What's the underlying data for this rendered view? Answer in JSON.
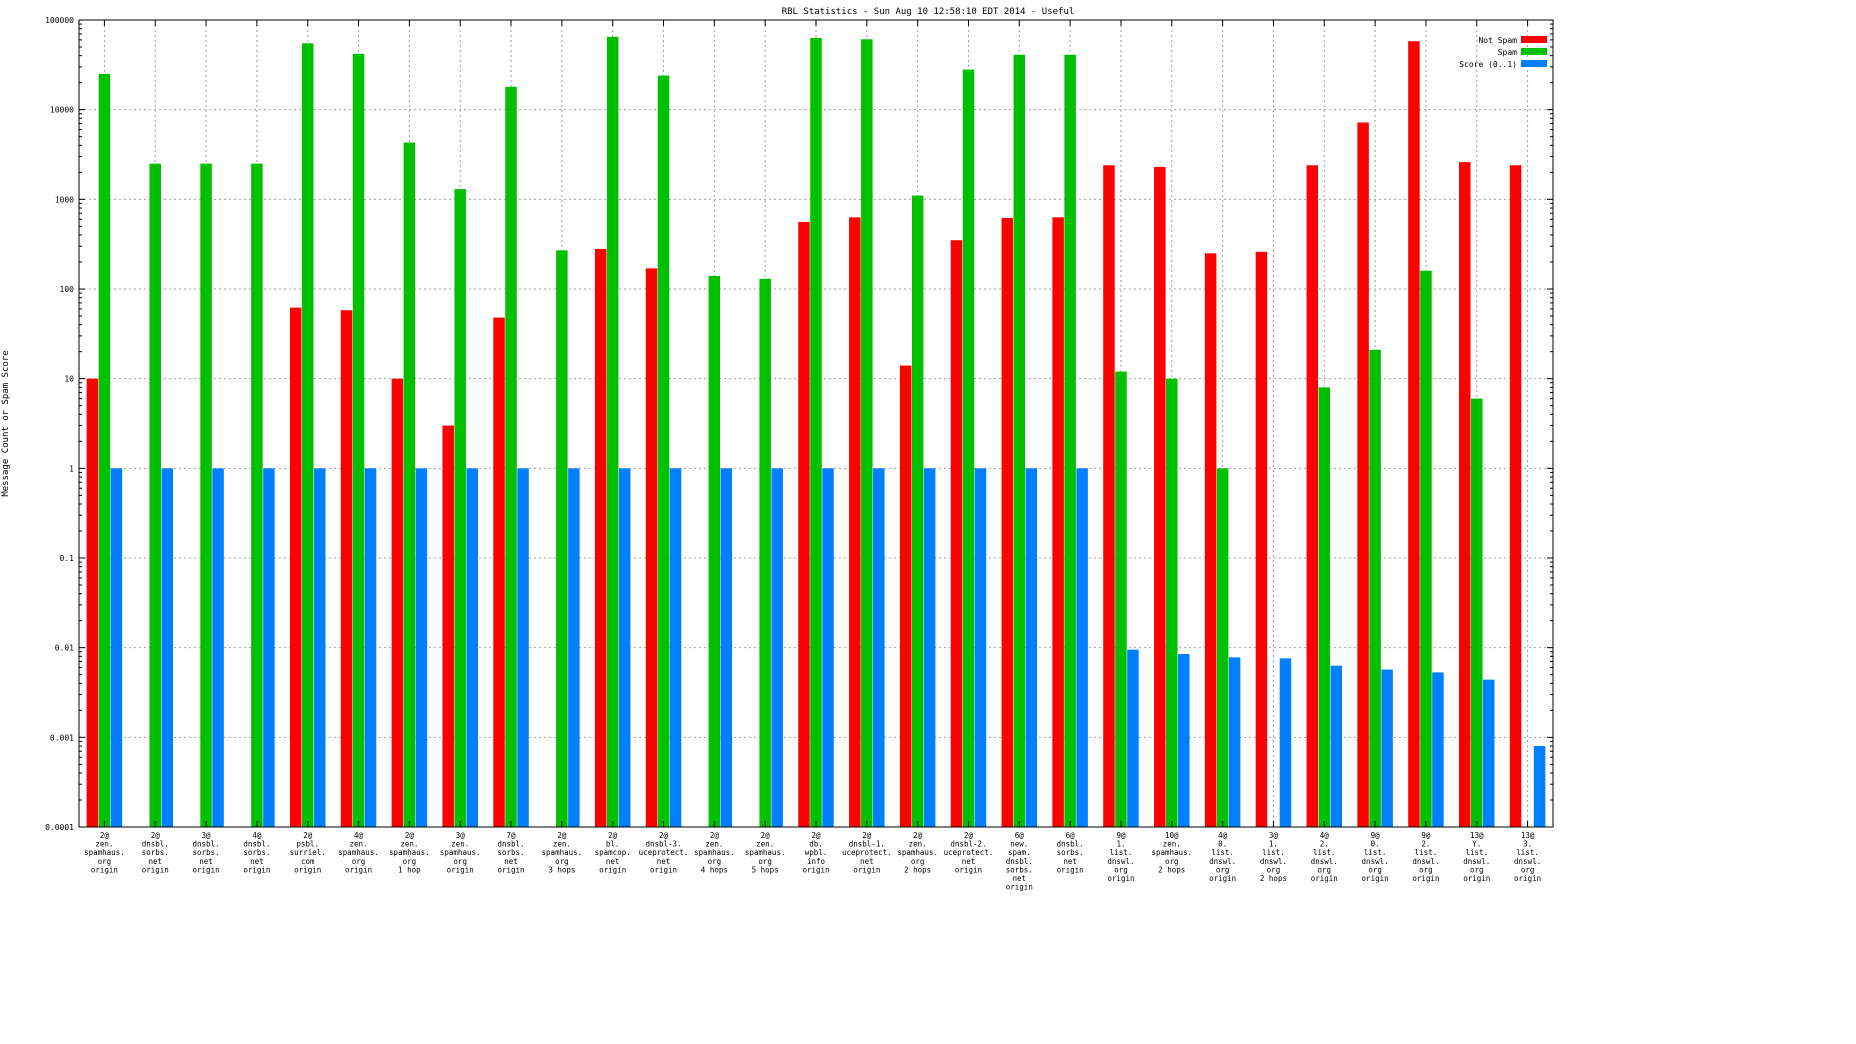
{
  "chart_data": {
    "type": "bar",
    "title": "RBL Statistics - Sun Aug 10 12:58:10 EDT 2014 - Useful",
    "xlabel": "",
    "ylabel": "Message Count or Spam Score",
    "yscale": "log",
    "ylim": [
      0.0001,
      100000
    ],
    "yticks": [
      0.0001,
      0.001,
      0.01,
      0.1,
      1,
      10,
      100,
      1000,
      10000,
      100000
    ],
    "ytick_labels": [
      "0.0001",
      "0.001",
      "0.01",
      "0.1",
      "1",
      "10",
      "100",
      "1000",
      "10000",
      "100000"
    ],
    "grid": true,
    "legend": "top-right",
    "categories": [
      [
        "2@",
        "zen.",
        "spamhaus.",
        "org",
        "origin"
      ],
      [
        "2@",
        "dnsbl.",
        "sorbs.",
        "net",
        "origin"
      ],
      [
        "3@",
        "dnsbl.",
        "sorbs.",
        "net",
        "origin"
      ],
      [
        "4@",
        "dnsbl.",
        "sorbs.",
        "net",
        "origin"
      ],
      [
        "2@",
        "psbl.",
        "surriel.",
        "com",
        "origin"
      ],
      [
        "4@",
        "zen.",
        "spamhaus.",
        "org",
        "origin"
      ],
      [
        "2@",
        "zen.",
        "spamhaus.",
        "org",
        "1 hop"
      ],
      [
        "3@",
        "zen.",
        "spamhaus.",
        "org",
        "origin"
      ],
      [
        "7@",
        "dnsbl.",
        "sorbs.",
        "net",
        "origin"
      ],
      [
        "2@",
        "zen.",
        "spamhaus.",
        "org",
        "3 hops"
      ],
      [
        "2@",
        "bl.",
        "spamcop.",
        "net",
        "origin"
      ],
      [
        "2@",
        "dnsbl-3.",
        "uceprotect.",
        "net",
        "origin"
      ],
      [
        "2@",
        "zen.",
        "spamhaus.",
        "org",
        "4 hops"
      ],
      [
        "2@",
        "zen.",
        "spamhaus.",
        "org",
        "5 hops"
      ],
      [
        "2@",
        "db.",
        "wpbl.",
        "info",
        "origin"
      ],
      [
        "2@",
        "dnsbl-1.",
        "uceprotect.",
        "net",
        "origin"
      ],
      [
        "2@",
        "zen.",
        "spamhaus.",
        "org",
        "2 hops"
      ],
      [
        "2@",
        "dnsbl-2.",
        "uceprotect.",
        "net",
        "origin"
      ],
      [
        "6@",
        "new.",
        "spam.",
        "dnsbl.",
        "sorbs.",
        "net",
        "origin"
      ],
      [
        "6@",
        "dnsbl.",
        "sorbs.",
        "net",
        "origin"
      ],
      [
        "9@",
        "1.",
        "list.",
        "dnswl.",
        "org",
        "origin"
      ],
      [
        "10@",
        "zen.",
        "spamhaus.",
        "org",
        "2 hops"
      ],
      [
        "4@",
        "0.",
        "list.",
        "dnswl.",
        "org",
        "origin"
      ],
      [
        "3@",
        "1.",
        "list.",
        "dnswl.",
        "org",
        "2 hops"
      ],
      [
        "4@",
        "2.",
        "list.",
        "dnswl.",
        "org",
        "origin"
      ],
      [
        "9@",
        "0.",
        "list.",
        "dnswl.",
        "org",
        "origin"
      ],
      [
        "9@",
        "2.",
        "list.",
        "dnswl.",
        "org",
        "origin"
      ],
      [
        "13@",
        "Y.",
        "list.",
        "dnswl.",
        "org",
        "origin"
      ],
      [
        "13@",
        "3.",
        "list.",
        "dnswl.",
        "org",
        "origin"
      ]
    ],
    "series": [
      {
        "name": "Not Spam",
        "color": "#ff0000",
        "values": [
          10,
          null,
          null,
          null,
          62,
          58,
          10,
          3,
          48,
          null,
          280,
          170,
          null,
          null,
          560,
          630,
          14,
          350,
          620,
          630,
          2400,
          2300,
          250,
          260,
          2400,
          7200,
          58000,
          2600,
          2400
        ]
      },
      {
        "name": "Spam",
        "color": "#00c000",
        "values": [
          25000,
          2500,
          2500,
          2500,
          55000,
          42000,
          4300,
          1300,
          18000,
          270,
          65000,
          24000,
          140,
          130,
          63000,
          61000,
          1100,
          28000,
          41000,
          41000,
          12,
          10,
          1,
          null,
          8,
          21,
          160,
          6,
          null
        ]
      },
      {
        "name": "Score (0..1)",
        "color": "#0080ff",
        "values": [
          1,
          1,
          1,
          1,
          1,
          1,
          1,
          1,
          1,
          1,
          1,
          1,
          1,
          1,
          1,
          1,
          1,
          1,
          1,
          1,
          0.0095,
          0.0085,
          0.0078,
          0.0076,
          0.0063,
          0.0057,
          0.0053,
          0.0044,
          0.0008
        ]
      }
    ]
  }
}
